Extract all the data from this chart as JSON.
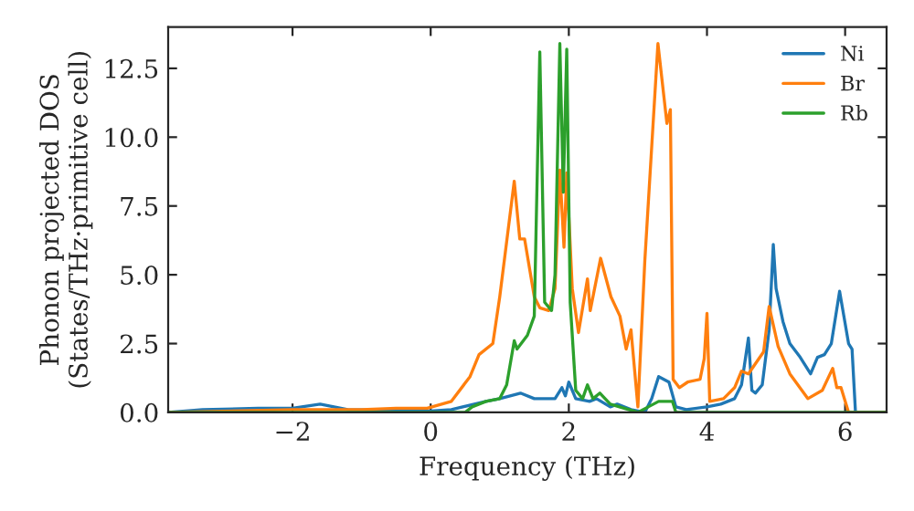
{
  "chart_data": {
    "type": "line",
    "xlabel": "Frequency (THz)",
    "ylabel": "Phonon projected DOS\n(States/THz·primitive cell)",
    "xlim": [
      -3.8,
      6.6
    ],
    "ylim": [
      0,
      14.0
    ],
    "xticks": [
      {
        "value": -2,
        "label": "−2"
      },
      0,
      2,
      4,
      6
    ],
    "yticks": [
      {
        "value": 0,
        "label": "0.0"
      },
      2.5,
      {
        "value": 5,
        "label": "5.0"
      },
      7.5,
      {
        "value": 10,
        "label": "10.0"
      },
      12.5
    ],
    "grid": false,
    "legend": "top right",
    "series": [
      {
        "name": "Ni",
        "color": "#1f77b4",
        "x": [
          -3.8,
          -3.3,
          -2.5,
          -2.0,
          -1.6,
          -1.2,
          0,
          0.3,
          0.8,
          1.0,
          1.3,
          1.5,
          1.8,
          1.9,
          1.95,
          2.0,
          2.1,
          2.3,
          2.4,
          2.6,
          2.7,
          2.9,
          3.1,
          3.2,
          3.3,
          3.45,
          3.55,
          3.7,
          4.0,
          4.2,
          4.4,
          4.5,
          4.6,
          4.65,
          4.7,
          4.8,
          4.9,
          4.96,
          5.0,
          5.1,
          5.2,
          5.35,
          5.5,
          5.6,
          5.7,
          5.8,
          5.92,
          6.05,
          6.1,
          6.15,
          6.6
        ],
        "values": [
          0.0,
          0.1,
          0.15,
          0.15,
          0.3,
          0.1,
          0.05,
          0.1,
          0.4,
          0.5,
          0.7,
          0.5,
          0.5,
          0.9,
          0.6,
          1.1,
          0.5,
          0.4,
          0.5,
          0.2,
          0.3,
          0.1,
          0.0,
          0.5,
          1.3,
          1.1,
          0.2,
          0.1,
          0.2,
          0.3,
          0.5,
          1.0,
          2.7,
          0.8,
          0.7,
          1.0,
          3.0,
          6.1,
          4.5,
          3.3,
          2.5,
          2.0,
          1.4,
          2.0,
          2.1,
          2.5,
          4.4,
          2.5,
          2.3,
          0.0,
          0.0
        ]
      },
      {
        "name": "Br",
        "color": "#ff7f0e",
        "x": [
          -3.8,
          -2.0,
          -1.0,
          -0.5,
          -0.05,
          0.3,
          0.57,
          0.7,
          0.9,
          1.0,
          1.21,
          1.29,
          1.36,
          1.5,
          1.58,
          1.71,
          1.8,
          1.87,
          1.93,
          1.97,
          2.05,
          2.14,
          2.27,
          2.31,
          2.46,
          2.61,
          2.74,
          2.83,
          2.9,
          3.0,
          3.1,
          3.29,
          3.42,
          3.47,
          3.51,
          3.6,
          3.72,
          3.9,
          3.96,
          4.0,
          4.04,
          4.24,
          4.4,
          4.5,
          4.6,
          4.82,
          4.9,
          5.03,
          5.2,
          5.46,
          5.67,
          5.82,
          5.88,
          5.94,
          6.05,
          6.6
        ],
        "values": [
          0.0,
          0.1,
          0.1,
          0.15,
          0.15,
          0.4,
          1.3,
          2.1,
          2.5,
          4.2,
          8.4,
          6.3,
          6.3,
          4.2,
          3.8,
          3.7,
          4.5,
          8.8,
          6.0,
          8.7,
          4.5,
          2.9,
          4.85,
          3.7,
          5.6,
          4.2,
          3.5,
          2.3,
          3.0,
          0.2,
          5.5,
          13.4,
          10.5,
          11.0,
          1.2,
          0.9,
          1.1,
          1.2,
          1.95,
          3.6,
          0.4,
          0.5,
          0.9,
          1.5,
          1.4,
          2.2,
          3.85,
          2.4,
          1.4,
          0.5,
          0.8,
          1.6,
          0.9,
          0.9,
          0.0,
          0.0
        ]
      },
      {
        "name": "Rb",
        "color": "#2ca02c",
        "x": [
          -3.8,
          0.4,
          0.5,
          0.6,
          0.8,
          1.0,
          1.1,
          1.21,
          1.25,
          1.4,
          1.5,
          1.58,
          1.65,
          1.75,
          1.8,
          1.87,
          1.92,
          1.97,
          2.02,
          2.1,
          2.2,
          2.27,
          2.35,
          2.45,
          2.6,
          2.8,
          3.0,
          3.15,
          3.3,
          3.5,
          3.55,
          6.6
        ],
        "values": [
          0.0,
          0.0,
          0.0,
          0.2,
          0.4,
          0.5,
          1.0,
          2.6,
          2.3,
          2.8,
          3.5,
          13.1,
          4.0,
          3.7,
          5.0,
          13.4,
          8.0,
          13.2,
          4.0,
          0.8,
          0.5,
          1.0,
          0.5,
          0.7,
          0.3,
          0.15,
          0.0,
          0.2,
          0.4,
          0.4,
          0.0,
          0.0
        ]
      }
    ]
  }
}
